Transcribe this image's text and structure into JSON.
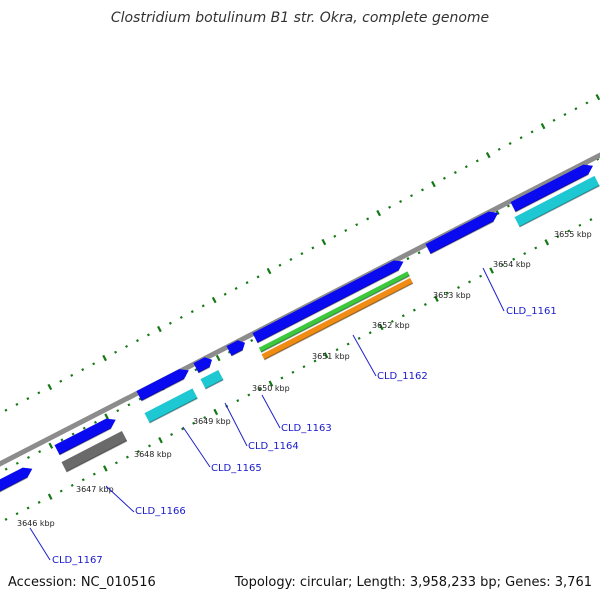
{
  "title": "Clostridium botulinum B1 str. Okra, complete genome",
  "footer": {
    "accession": "Accession: NC_010516",
    "summary": "Topology: circular; Length: 3,958,233 bp; Genes: 3,761"
  },
  "colors": {
    "backbone": "#8c8c8c",
    "cds_forward": "#0a0af0",
    "cds_reverse": "#1ec8d2",
    "pseudo": "#6a6a6a",
    "green_feature": "#3cc83c",
    "orange_feature": "#f08c14",
    "ticks": "#147814",
    "label_lines": "#2222cc"
  },
  "kbp_ticks": [
    "3646 kbp",
    "3647 kbp",
    "3648 kbp",
    "3649 kbp",
    "3650 kbp",
    "3651 kbp",
    "3652 kbp",
    "3653 kbp",
    "3654 kbp",
    "3655 kbp"
  ],
  "genes": [
    {
      "name": "CLD_1167"
    },
    {
      "name": "CLD_1166"
    },
    {
      "name": "CLD_1165"
    },
    {
      "name": "CLD_1164"
    },
    {
      "name": "CLD_1163"
    },
    {
      "name": "CLD_1162"
    },
    {
      "name": "CLD_1161"
    }
  ]
}
